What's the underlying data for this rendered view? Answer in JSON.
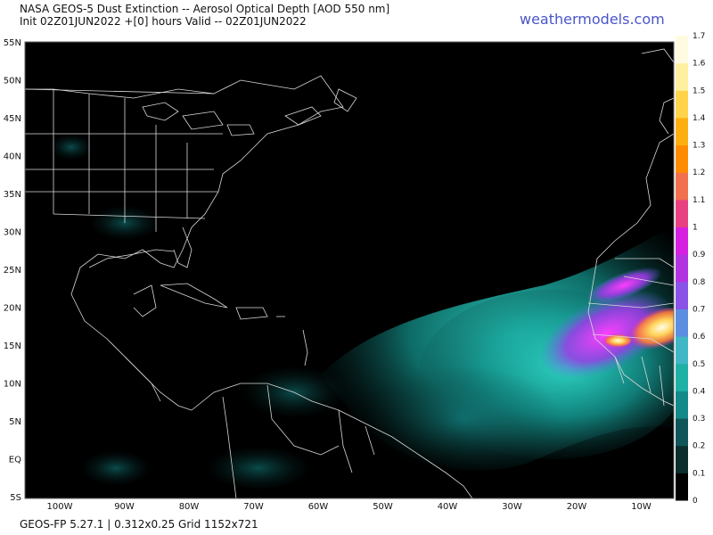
{
  "header": {
    "title_line1": "NASA GEOS-5 Dust Extinction -- Aerosol Optical Depth [AOD 550 nm]",
    "title_line2": "Init 02Z01JUN2022 +[0] hours Valid -- 02Z01JUN2022",
    "brand": "weathermodels.com"
  },
  "footer": {
    "text": "GEOS-FP 5.27.1 | 0.312x0.25 Grid 1152x721"
  },
  "map": {
    "background": "#000000",
    "coastline_color": "#d9d9d9",
    "lat_labels": [
      "55N",
      "50N",
      "45N",
      "40N",
      "35N",
      "30N",
      "25N",
      "20N",
      "15N",
      "10N",
      "5N",
      "EQ",
      "5S"
    ],
    "lon_labels": [
      "100W",
      "90W",
      "80W",
      "70W",
      "60W",
      "50W",
      "40W",
      "30W",
      "20W",
      "10W"
    ]
  },
  "colorbar": {
    "ticks": [
      "1.7",
      "1.6",
      "1.5",
      "1.4",
      "1.3",
      "1.2",
      "1.1",
      "1",
      "0.9",
      "0.8",
      "0.7",
      "0.6",
      "0.5",
      "0.4",
      "0.3",
      "0.2",
      "0.1",
      "0"
    ],
    "min": 0,
    "max": 1.7,
    "colors": [
      "#000000",
      "#0b2e2c",
      "#10555a",
      "#138a8a",
      "#1fb0a6",
      "#3fb7c4",
      "#5b8ee0",
      "#8a52e6",
      "#b232e0",
      "#d61fe0",
      "#e84080",
      "#f07050",
      "#ff8c00",
      "#ffae10",
      "#ffd34a",
      "#fff0a0",
      "#fffbe0"
    ]
  }
}
